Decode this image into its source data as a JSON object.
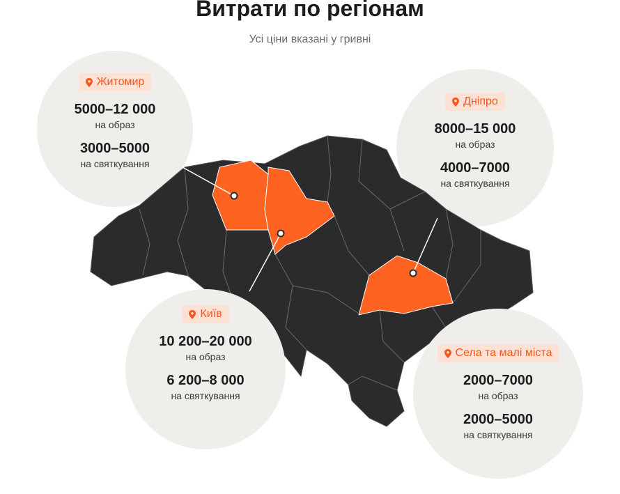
{
  "header": {
    "title": "Витрати по регіонам",
    "subtitle": "Усі ціни вказані у гривні"
  },
  "regions": [
    {
      "name": "Житомир",
      "price_portrait": "5000–12 000",
      "label_portrait": "на образ",
      "price_celebration": "3000–5000",
      "label_celebration": "на святкування"
    },
    {
      "name": "Дніпро",
      "price_portrait": "8000–15 000",
      "label_portrait": "на образ",
      "price_celebration": "4000–7000",
      "label_celebration": "на святкування"
    },
    {
      "name": "Київ",
      "price_portrait": "10 200–20 000",
      "label_portrait": "на образ",
      "price_celebration": "6 200–8 000",
      "label_celebration": "на святкування"
    },
    {
      "name": "Села та малі міста",
      "price_portrait": "2000–7000",
      "label_portrait": "на образ",
      "price_celebration": "2000–5000",
      "label_celebration": "на святкування"
    }
  ]
}
